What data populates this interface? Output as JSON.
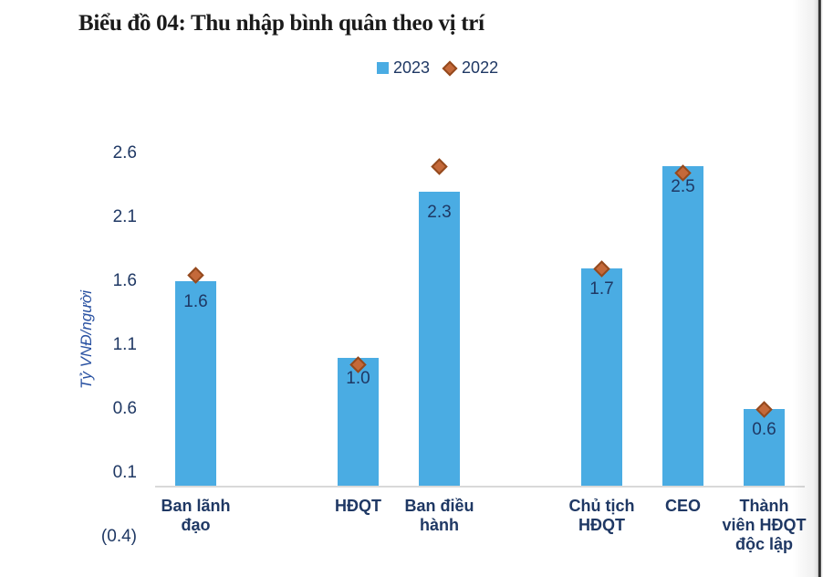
{
  "title": "Biểu đồ 04: Thu nhập bình quân theo vị trí",
  "legend": {
    "items": [
      {
        "label": "2023",
        "marker": "square",
        "color": "#4AACE3"
      },
      {
        "label": "2022",
        "marker": "diamond",
        "color": "#C4693A"
      }
    ]
  },
  "chart_data": {
    "type": "bar",
    "title": "Biểu đồ 04: Thu nhập bình quân theo vị trí",
    "ylabel": "Tỷ VNĐ/người",
    "xlabel": "",
    "ylim": [
      -0.4,
      2.6
    ],
    "grid": false,
    "legend_position": "top-center",
    "yticks": [
      {
        "value": 2.6,
        "label": "2.6"
      },
      {
        "value": 2.1,
        "label": "2.1"
      },
      {
        "value": 1.6,
        "label": "1.6"
      },
      {
        "value": 1.1,
        "label": "1.1"
      },
      {
        "value": 0.6,
        "label": "0.6"
      },
      {
        "value": 0.1,
        "label": "0.1"
      },
      {
        "value": -0.4,
        "label": "(0.4)"
      }
    ],
    "slot_count": 8,
    "series_names": [
      "2023",
      "2022"
    ],
    "categories": [
      {
        "slot": 0,
        "label": "Ban lãnh đạo",
        "label_lines": [
          "Ban lãnh",
          "đạo"
        ],
        "y2023": 1.6,
        "y2023_label": "1.6",
        "y2022": 1.65
      },
      {
        "slot": 2,
        "label": "HĐQT",
        "label_lines": [
          "HĐQT"
        ],
        "y2023": 1.0,
        "y2023_label": "1.0",
        "y2022": 0.95
      },
      {
        "slot": 3,
        "label": "Ban điều hành",
        "label_lines": [
          "Ban điều",
          "hành"
        ],
        "y2023": 2.3,
        "y2023_label": "2.3",
        "y2022": 2.5
      },
      {
        "slot": 5,
        "label": "Chủ tịch HĐQT",
        "label_lines": [
          "Chủ tịch",
          "HĐQT"
        ],
        "y2023": 1.7,
        "y2023_label": "1.7",
        "y2022": 1.7
      },
      {
        "slot": 6,
        "label": "CEO",
        "label_lines": [
          "CEO"
        ],
        "y2023": 2.5,
        "y2023_label": "2.5",
        "y2022": 2.45
      },
      {
        "slot": 7,
        "label": "Thành viên HĐQT độc lập",
        "label_lines": [
          "Thành",
          "viên HĐQT",
          "độc lập"
        ],
        "y2023": 0.6,
        "y2023_label": "0.6",
        "y2022": 0.6
      }
    ],
    "colors": {
      "bar_2023": "#4AACE3",
      "diamond_2022_fill": "#C4693A",
      "diamond_2022_border": "#94491D",
      "label_text": "#1F3864",
      "axis_line": "#D9D9D9",
      "ylabel_text": "#2A52A2",
      "title_text": "#1A1A1A"
    }
  }
}
